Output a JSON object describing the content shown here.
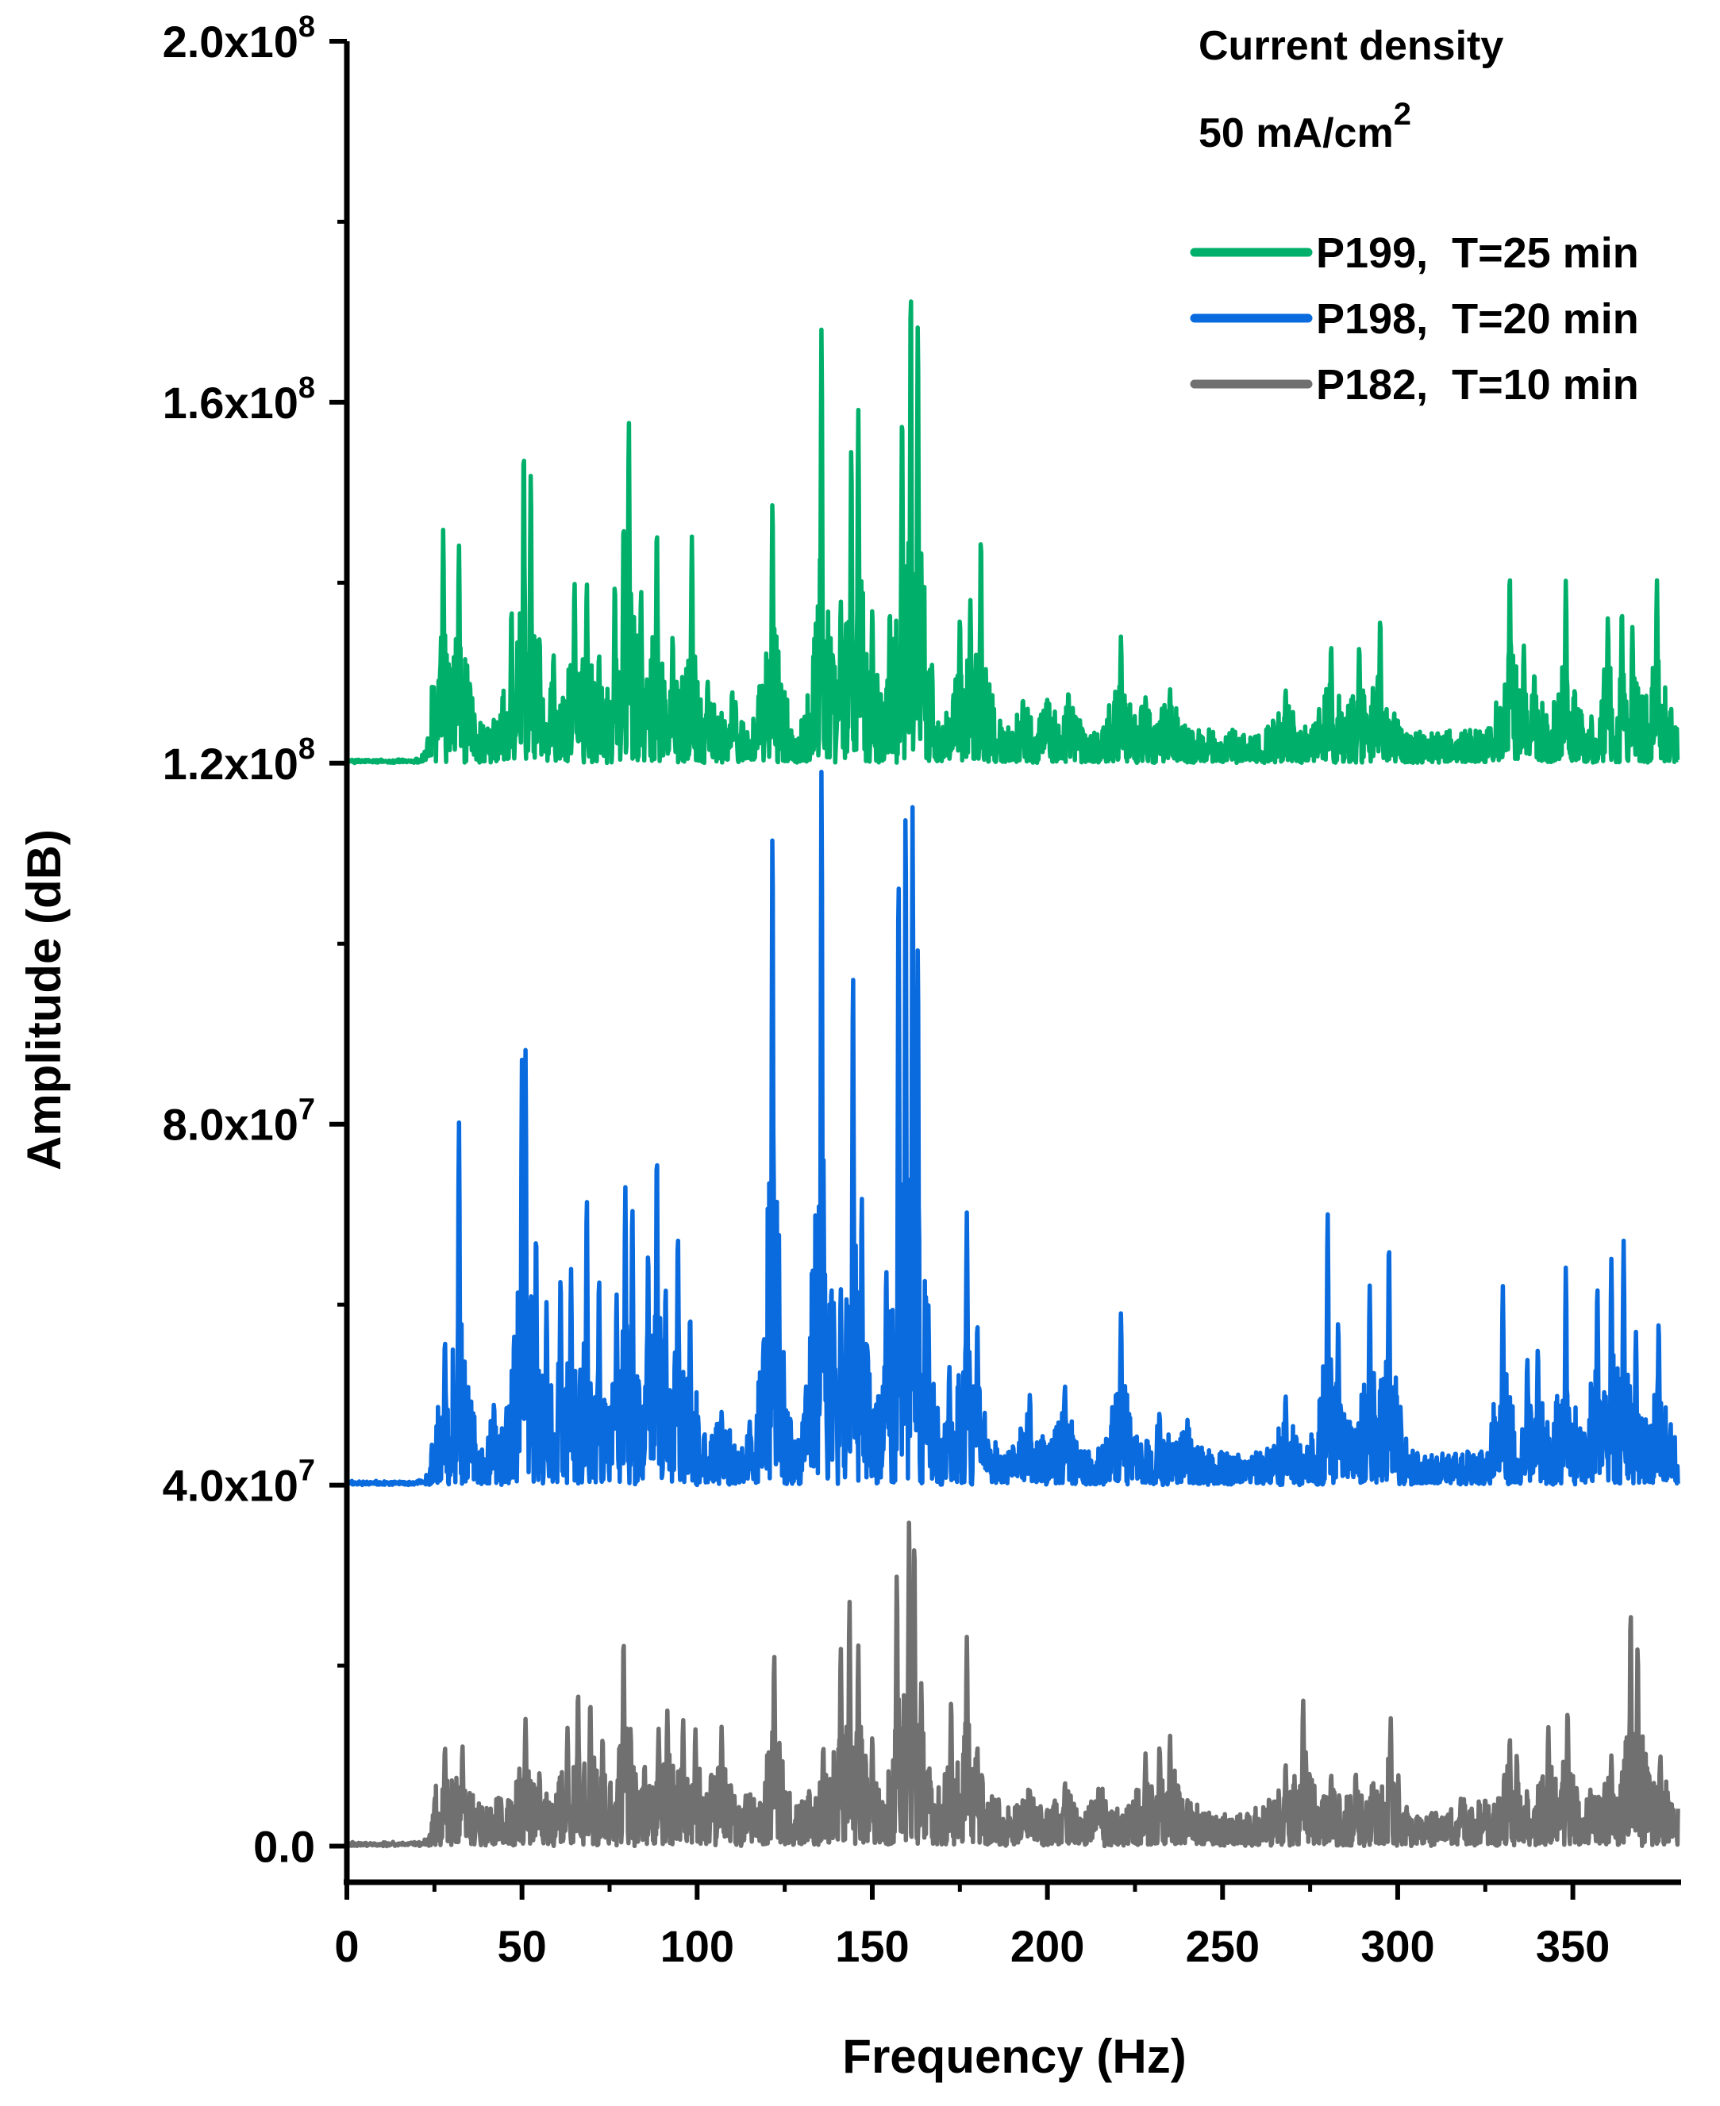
{
  "chart_data": {
    "type": "line",
    "title": "",
    "xlabel": "Frequency (Hz)",
    "ylabel": "Amplitude (dB)",
    "xlim": [
      0,
      380
    ],
    "ylim": [
      -4000000,
      200000000
    ],
    "x_ticks": [
      0,
      50,
      100,
      150,
      200,
      250,
      300,
      350
    ],
    "x_tick_labels": [
      "0",
      "50",
      "100",
      "150",
      "200",
      "250",
      "300",
      "350"
    ],
    "y_ticks": [
      0,
      40000000,
      80000000,
      120000000,
      160000000,
      200000000
    ],
    "y_tick_labels": [
      {
        "mant": "0.0",
        "exp": ""
      },
      {
        "mant": "4.0x10",
        "exp": "7"
      },
      {
        "mant": "8.0x10",
        "exp": "7"
      },
      {
        "mant": "1.2x10",
        "exp": "8"
      },
      {
        "mant": "1.6x10",
        "exp": "8"
      },
      {
        "mant": "2.0x10",
        "exp": "8"
      }
    ],
    "annotation": {
      "line1": "Current density",
      "line2_prefix": "50 mA/cm",
      "line2_sup": "2"
    },
    "legend_position": "top-right",
    "grid": false,
    "series": [
      {
        "name": "P199,  T=25 min",
        "color": "#00b06a",
        "baseline": 120000000,
        "peaks": [
          [
            27.5,
            26000000
          ],
          [
            32,
            24000000
          ],
          [
            35,
            8000000
          ],
          [
            47,
            17000000
          ],
          [
            50.5,
            35000000
          ],
          [
            52.5,
            32000000
          ],
          [
            55,
            14000000
          ],
          [
            59,
            12000000
          ],
          [
            65,
            20000000
          ],
          [
            68.5,
            20000000
          ],
          [
            72,
            12000000
          ],
          [
            76.5,
            20000000
          ],
          [
            79,
            27000000
          ],
          [
            80.5,
            38000000
          ],
          [
            84,
            19000000
          ],
          [
            88.5,
            26000000
          ],
          [
            93,
            14000000
          ],
          [
            98.5,
            25000000
          ],
          [
            103,
            9000000
          ],
          [
            110,
            8000000
          ],
          [
            121.5,
            29000000
          ],
          [
            135.5,
            48000000
          ],
          [
            141,
            18000000
          ],
          [
            144,
            35000000
          ],
          [
            146,
            39000000
          ],
          [
            150,
            17000000
          ],
          [
            155,
            17000000
          ],
          [
            158.5,
            39000000
          ],
          [
            161,
            53000000
          ],
          [
            163,
            49000000
          ],
          [
            167,
            11000000
          ],
          [
            175,
            16000000
          ],
          [
            178,
            18000000
          ],
          [
            181,
            25000000
          ],
          [
            193,
            7000000
          ],
          [
            200,
            7000000
          ],
          [
            206,
            8000000
          ],
          [
            221,
            14000000
          ],
          [
            228,
            7000000
          ],
          [
            235,
            8000000
          ],
          [
            268,
            8000000
          ],
          [
            281,
            13000000
          ],
          [
            289,
            13000000
          ],
          [
            295,
            16000000
          ],
          [
            332,
            21000000
          ],
          [
            336,
            13000000
          ],
          [
            339,
            10000000
          ],
          [
            348,
            20000000
          ],
          [
            360,
            16000000
          ],
          [
            364,
            17000000
          ],
          [
            367,
            15000000
          ],
          [
            374,
            20000000
          ]
        ]
      },
      {
        "name": "P198,  T=20 min",
        "color": "#0a6bdf",
        "baseline": 40000000,
        "peaks": [
          [
            28,
            16000000
          ],
          [
            32,
            40000000
          ],
          [
            35,
            6000000
          ],
          [
            42,
            9000000
          ],
          [
            50,
            47000000
          ],
          [
            51,
            48000000
          ],
          [
            54,
            28000000
          ],
          [
            57,
            20000000
          ],
          [
            61,
            23000000
          ],
          [
            64,
            24000000
          ],
          [
            68.5,
            32000000
          ],
          [
            72,
            23000000
          ],
          [
            77,
            21000000
          ],
          [
            79.5,
            33000000
          ],
          [
            81.5,
            31000000
          ],
          [
            86,
            26000000
          ],
          [
            88.5,
            37000000
          ],
          [
            91,
            22000000
          ],
          [
            94.5,
            28000000
          ],
          [
            98,
            19000000
          ],
          [
            107,
            8000000
          ],
          [
            115,
            7000000
          ],
          [
            121.5,
            73000000
          ],
          [
            123,
            12000000
          ],
          [
            135.5,
            79000000
          ],
          [
            139,
            20000000
          ],
          [
            141,
            22000000
          ],
          [
            144.5,
            57000000
          ],
          [
            147,
            32000000
          ],
          [
            154,
            24000000
          ],
          [
            157.5,
            68000000
          ],
          [
            159.5,
            75000000
          ],
          [
            161.5,
            75000000
          ],
          [
            163,
            60000000
          ],
          [
            166,
            20000000
          ],
          [
            172,
            13000000
          ],
          [
            177,
            30000000
          ],
          [
            180,
            18000000
          ],
          [
            195,
            10000000
          ],
          [
            205,
            11000000
          ],
          [
            221,
            19000000
          ],
          [
            232,
            8000000
          ],
          [
            240,
            7000000
          ],
          [
            268,
            10000000
          ],
          [
            280,
            30000000
          ],
          [
            283,
            18000000
          ],
          [
            292,
            22000000
          ],
          [
            297.5,
            27000000
          ],
          [
            330,
            22000000
          ],
          [
            337,
            14000000
          ],
          [
            340,
            15000000
          ],
          [
            348,
            24000000
          ],
          [
            357,
            22000000
          ],
          [
            361,
            25000000
          ],
          [
            364.5,
            27000000
          ],
          [
            368,
            17000000
          ],
          [
            374.5,
            18000000
          ]
        ]
      },
      {
        "name": "P182,  T=10 min",
        "color": "#707070",
        "baseline": 0,
        "peaks": [
          [
            28,
            11000000
          ],
          [
            33,
            11000000
          ],
          [
            37,
            4000000
          ],
          [
            44,
            5000000
          ],
          [
            51,
            14000000
          ],
          [
            55,
            8000000
          ],
          [
            63,
            13000000
          ],
          [
            66,
            17000000
          ],
          [
            69.5,
            16000000
          ],
          [
            73,
            12000000
          ],
          [
            79,
            23000000
          ],
          [
            81,
            13000000
          ],
          [
            85,
            9000000
          ],
          [
            89,
            13000000
          ],
          [
            91.5,
            15000000
          ],
          [
            96,
            14000000
          ],
          [
            99.5,
            13000000
          ],
          [
            104,
            8000000
          ],
          [
            107,
            13000000
          ],
          [
            115,
            5000000
          ],
          [
            122,
            21000000
          ],
          [
            132,
            6000000
          ],
          [
            136,
            11000000
          ],
          [
            141,
            22000000
          ],
          [
            143.5,
            27000000
          ],
          [
            146,
            22000000
          ],
          [
            150,
            12000000
          ],
          [
            157,
            30000000
          ],
          [
            160.5,
            36000000
          ],
          [
            162,
            34000000
          ],
          [
            164,
            18000000
          ],
          [
            172.5,
            16000000
          ],
          [
            177,
            23000000
          ],
          [
            180,
            11000000
          ],
          [
            185,
            5000000
          ],
          [
            195,
            6000000
          ],
          [
            205,
            7000000
          ],
          [
            215,
            6000000
          ],
          [
            228,
            10000000
          ],
          [
            232,
            11000000
          ],
          [
            235,
            12000000
          ],
          [
            240,
            5000000
          ],
          [
            262,
            4000000
          ],
          [
            268,
            9000000
          ],
          [
            273,
            16000000
          ],
          [
            281,
            8000000
          ],
          [
            288,
            8000000
          ],
          [
            293,
            7000000
          ],
          [
            298,
            14000000
          ],
          [
            318,
            4000000
          ],
          [
            325,
            5000000
          ],
          [
            332,
            12000000
          ],
          [
            334,
            10000000
          ],
          [
            343,
            13000000
          ],
          [
            348.5,
            15000000
          ],
          [
            355,
            6000000
          ],
          [
            361,
            10000000
          ],
          [
            366.5,
            26000000
          ],
          [
            368.5,
            22000000
          ],
          [
            375,
            10000000
          ]
        ]
      }
    ]
  }
}
